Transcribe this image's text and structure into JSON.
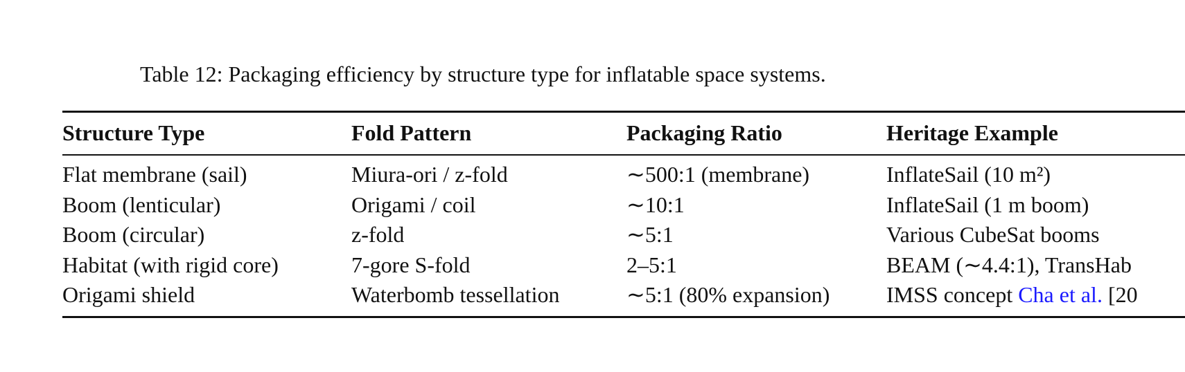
{
  "caption": "Table 12: Packaging efficiency by structure type for inflatable space systems.",
  "table": {
    "headers": [
      "Structure Type",
      "Fold Pattern",
      "Packaging Ratio",
      "Heritage Example"
    ],
    "rows": [
      [
        "Flat membrane (sail)",
        "Miura-ori / z-fold",
        "∼500:1 (membrane)",
        "InflateSail (10 m²)"
      ],
      [
        "Boom (lenticular)",
        "Origami / coil",
        "∼10:1",
        "InflateSail (1 m boom)"
      ],
      [
        "Boom (circular)",
        "z-fold",
        "∼5:1",
        "Various CubeSat booms"
      ],
      [
        "Habitat (with rigid core)",
        "7-gore S-fold",
        "2–5:1",
        "BEAM (∼4.4:1), TransHab"
      ],
      [
        "Origami shield",
        "Waterbomb tessellation",
        "∼5:1 (80% expansion)",
        {
          "text": "IMSS concept",
          "link": "Cha et al.",
          "cite": "[20"
        }
      ]
    ]
  }
}
